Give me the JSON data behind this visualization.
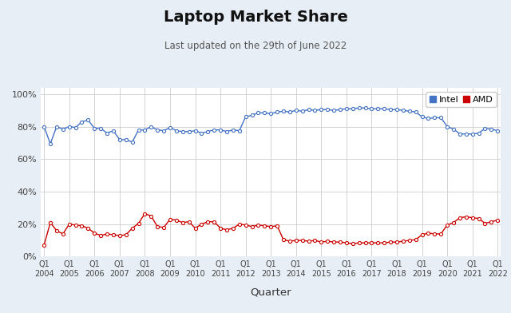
{
  "title": "Laptop Market Share",
  "subtitle": "Last updated on the 29th of June 2022",
  "xlabel": "Quarter",
  "background_color": "#e8eef5",
  "plot_bg_color": "#ffffff",
  "intel_color": "#4472c4",
  "amd_color": "#cc0000",
  "ylim": [
    0,
    1.04
  ],
  "yticks": [
    0,
    0.2,
    0.4,
    0.6,
    0.8,
    1.0
  ],
  "ytick_labels": [
    "0%",
    "20%",
    "40%",
    "60%",
    "80%",
    "100%"
  ],
  "intel_data": [
    0.8,
    0.695,
    0.8,
    0.785,
    0.8,
    0.795,
    0.83,
    0.84,
    0.79,
    0.79,
    0.76,
    0.775,
    0.72,
    0.72,
    0.705,
    0.78,
    0.78,
    0.8,
    0.78,
    0.775,
    0.795,
    0.775,
    0.77,
    0.77,
    0.775,
    0.76,
    0.77,
    0.78,
    0.78,
    0.77,
    0.78,
    0.775,
    0.86,
    0.87,
    0.885,
    0.885,
    0.88,
    0.89,
    0.895,
    0.89,
    0.9,
    0.895,
    0.905,
    0.9,
    0.905,
    0.905,
    0.9,
    0.905,
    0.91,
    0.91,
    0.915,
    0.915,
    0.91,
    0.91,
    0.91,
    0.905,
    0.905,
    0.9,
    0.895,
    0.89,
    0.86,
    0.85,
    0.855,
    0.855,
    0.8,
    0.785,
    0.755,
    0.755,
    0.755,
    0.76,
    0.79,
    0.785,
    0.775
  ],
  "amd_data": [
    0.07,
    0.21,
    0.16,
    0.14,
    0.2,
    0.195,
    0.19,
    0.175,
    0.145,
    0.13,
    0.14,
    0.135,
    0.13,
    0.135,
    0.175,
    0.205,
    0.265,
    0.25,
    0.185,
    0.18,
    0.23,
    0.225,
    0.21,
    0.215,
    0.175,
    0.2,
    0.215,
    0.215,
    0.175,
    0.165,
    0.175,
    0.2,
    0.195,
    0.185,
    0.195,
    0.19,
    0.185,
    0.19,
    0.105,
    0.095,
    0.1,
    0.1,
    0.095,
    0.1,
    0.09,
    0.095,
    0.09,
    0.09,
    0.085,
    0.08,
    0.085,
    0.085,
    0.085,
    0.085,
    0.085,
    0.09,
    0.09,
    0.095,
    0.1,
    0.105,
    0.135,
    0.145,
    0.14,
    0.14,
    0.195,
    0.21,
    0.24,
    0.245,
    0.24,
    0.235,
    0.205,
    0.215,
    0.225
  ],
  "n_points": 73,
  "xtick_positions": [
    0,
    4,
    8,
    12,
    16,
    20,
    24,
    28,
    32,
    36,
    40,
    44,
    48,
    52,
    56,
    60,
    64,
    68,
    72
  ],
  "xtick_labels": [
    "Q1\n2004",
    "Q1\n2005",
    "Q1\n2006",
    "Q1\n2007",
    "Q1\n2008",
    "Q1\n2009",
    "Q1\n2010",
    "Q1\n2011",
    "Q1\n2012",
    "Q1\n2013",
    "Q1\n2014",
    "Q1\n2015",
    "Q1\n2016",
    "Q1\n2017",
    "Q1\n2018",
    "Q1\n2019",
    "Q1\n2020",
    "Q1\n2021",
    "Q1\n2022"
  ]
}
